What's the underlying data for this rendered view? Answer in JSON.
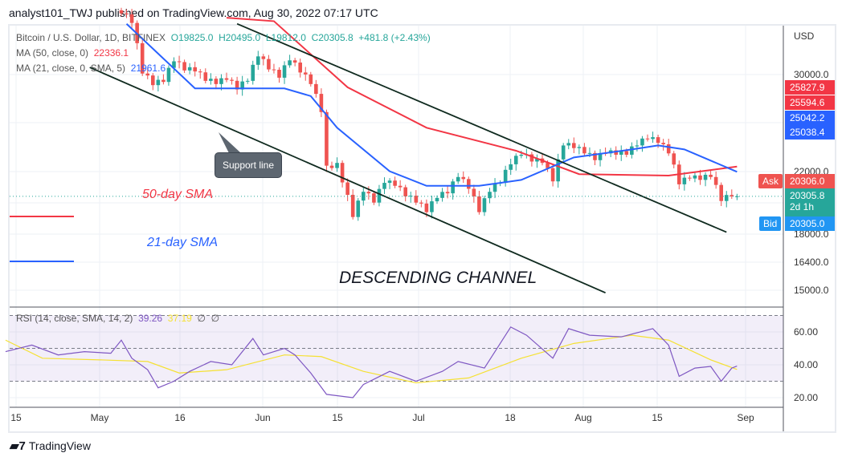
{
  "header": {
    "publisher": "analyst101_TWJ published on TradingView.com, Aug 30, 2022 07:17 UTC"
  },
  "legend": {
    "symbol": "Bitcoin / U.S. Dollar, 1D, BITFINEX",
    "o": "O19825.0",
    "h": "H20495.0",
    "l": "L19812.0",
    "c": "C20305.8",
    "change": "+481.8 (+2.43%)",
    "ma50_label": "MA (50, close, 0)",
    "ma50_value": "22336.1",
    "ma21_label": "MA (21, close, 0, SMA, 5)",
    "ma21_value": "21961.6",
    "rsi_label": "RSI (14, close, SMA, 14, 2)",
    "rsi_value": "39.26",
    "rsi_sma_value": "37.19",
    "rsi_extra1": "∅",
    "rsi_extra2": "∅"
  },
  "colors": {
    "up": "#26a69a",
    "down": "#ef5350",
    "ma50": "#f23645",
    "ma21": "#2962ff",
    "rsi": "#7e57c2",
    "rsi_sma": "#f5e132",
    "channel": "#0f2a1f"
  },
  "price_axis": {
    "currency": "USD",
    "ticks": [
      "30000.0",
      "22000.0",
      "18000.0",
      "16400.0",
      "15000.0"
    ],
    "labels": {
      "ma50_a": "25827.9",
      "ma50_b": "25594.6",
      "ma21_a": "25042.2",
      "ma21_b": "25038.4",
      "ask_tag": "Ask",
      "ask": "20306.0",
      "last": "20305.8",
      "countdown": "2d 1h",
      "bid_tag": "Bid",
      "bid": "20305.0"
    }
  },
  "rsi_axis": {
    "ticks": [
      "60.00",
      "40.00",
      "20.00"
    ]
  },
  "time_axis": [
    "15",
    "May",
    "16",
    "Jun",
    "15",
    "Jul",
    "18",
    "Aug",
    "15",
    "Sep"
  ],
  "annotations": {
    "support": "Support line",
    "sma50": "50-day SMA",
    "sma21": "21-day SMA",
    "channel": "DESCENDING CHANNEL"
  },
  "brand": "TradingView",
  "chart_data": {
    "type": "candlestick",
    "scale": "log",
    "closes": [
      [
        "05-05",
        36500
      ],
      [
        "05-07",
        35400
      ],
      [
        "05-09",
        30100
      ],
      [
        "05-11",
        29000
      ],
      [
        "05-13",
        29300
      ],
      [
        "05-15",
        31300
      ],
      [
        "05-17",
        30400
      ],
      [
        "05-19",
        30300
      ],
      [
        "05-21",
        29400
      ],
      [
        "05-23",
        29100
      ],
      [
        "05-25",
        29500
      ],
      [
        "05-27",
        28600
      ],
      [
        "05-29",
        29400
      ],
      [
        "05-31",
        31800
      ],
      [
        "06-02",
        30500
      ],
      [
        "06-04",
        29700
      ],
      [
        "06-06",
        31400
      ],
      [
        "06-08",
        30200
      ],
      [
        "06-10",
        29100
      ],
      [
        "06-12",
        26600
      ],
      [
        "06-13",
        22400
      ],
      [
        "06-15",
        22600
      ],
      [
        "06-17",
        20400
      ],
      [
        "06-18",
        19000
      ],
      [
        "06-20",
        20600
      ],
      [
        "06-22",
        19900
      ],
      [
        "06-24",
        21200
      ],
      [
        "06-26",
        21000
      ],
      [
        "06-28",
        20300
      ],
      [
        "06-30",
        19900
      ],
      [
        "07-02",
        19300
      ],
      [
        "07-04",
        20200
      ],
      [
        "07-06",
        20500
      ],
      [
        "07-08",
        21600
      ],
      [
        "07-10",
        20800
      ],
      [
        "07-12",
        19300
      ],
      [
        "07-14",
        20600
      ],
      [
        "07-16",
        21200
      ],
      [
        "07-18",
        22500
      ],
      [
        "07-20",
        23200
      ],
      [
        "07-22",
        22700
      ],
      [
        "07-24",
        22600
      ],
      [
        "07-26",
        21300
      ],
      [
        "07-28",
        23900
      ],
      [
        "07-30",
        23700
      ],
      [
        "08-01",
        23300
      ],
      [
        "08-03",
        22800
      ],
      [
        "08-05",
        23300
      ],
      [
        "08-07",
        23200
      ],
      [
        "08-09",
        23200
      ],
      [
        "08-11",
        23900
      ],
      [
        "08-13",
        24400
      ],
      [
        "08-15",
        24100
      ],
      [
        "08-17",
        23300
      ],
      [
        "08-19",
        21100
      ],
      [
        "08-21",
        21500
      ],
      [
        "08-23",
        21400
      ],
      [
        "08-25",
        21600
      ],
      [
        "08-27",
        20000
      ],
      [
        "08-29",
        20300
      ],
      [
        "08-30",
        20305.8
      ]
    ],
    "ma50": [
      [
        "05-25",
        36000
      ],
      [
        "06-03",
        35600
      ],
      [
        "06-17",
        28800
      ],
      [
        "07-02",
        25300
      ],
      [
        "07-19",
        23500
      ],
      [
        "07-31",
        21800
      ],
      [
        "08-17",
        21700
      ],
      [
        "08-30",
        22336.1
      ]
    ],
    "ma21": [
      [
        "05-06",
        35300
      ],
      [
        "05-19",
        28700
      ],
      [
        "06-05",
        28700
      ],
      [
        "06-10",
        28000
      ],
      [
        "06-15",
        25300
      ],
      [
        "06-25",
        22000
      ],
      [
        "07-02",
        21000
      ],
      [
        "07-12",
        21000
      ],
      [
        "07-20",
        21400
      ],
      [
        "07-30",
        23000
      ],
      [
        "08-10",
        23600
      ],
      [
        "08-15",
        23900
      ],
      [
        "08-20",
        23600
      ],
      [
        "08-30",
        21961.6
      ]
    ],
    "last_price": 20305.8,
    "channel_lines": [
      [
        [
          "05-27",
          35300
        ],
        [
          "08-28",
          18100
        ]
      ],
      [
        [
          "04-29",
          30700
        ],
        [
          "08-05",
          14900
        ]
      ]
    ],
    "rsi": [
      [
        "04-13",
        48
      ],
      [
        "04-18",
        52
      ],
      [
        "04-23",
        46
      ],
      [
        "04-28",
        48
      ],
      [
        "05-03",
        47
      ],
      [
        "05-05",
        55
      ],
      [
        "05-07",
        44
      ],
      [
        "05-10",
        37
      ],
      [
        "05-12",
        26
      ],
      [
        "05-15",
        30
      ],
      [
        "05-18",
        36
      ],
      [
        "05-22",
        42
      ],
      [
        "05-26",
        40
      ],
      [
        "05-30",
        56
      ],
      [
        "06-01",
        46
      ],
      [
        "06-05",
        50
      ],
      [
        "06-07",
        46
      ],
      [
        "06-10",
        35
      ],
      [
        "06-13",
        22
      ],
      [
        "06-18",
        20
      ],
      [
        "06-20",
        28
      ],
      [
        "06-25",
        36
      ],
      [
        "06-30",
        30
      ],
      [
        "07-05",
        36
      ],
      [
        "07-08",
        42
      ],
      [
        "07-13",
        38
      ],
      [
        "07-18",
        63
      ],
      [
        "07-21",
        58
      ],
      [
        "07-26",
        44
      ],
      [
        "07-29",
        62
      ],
      [
        "08-02",
        58
      ],
      [
        "08-08",
        57
      ],
      [
        "08-14",
        62
      ],
      [
        "08-17",
        52
      ],
      [
        "08-19",
        33
      ],
      [
        "08-22",
        38
      ],
      [
        "08-25",
        39
      ],
      [
        "08-27",
        30
      ],
      [
        "08-29",
        38
      ],
      [
        "08-30",
        39.26
      ]
    ],
    "rsi_sma": [
      [
        "04-13",
        55
      ],
      [
        "04-20",
        44
      ],
      [
        "05-01",
        43
      ],
      [
        "05-10",
        42
      ],
      [
        "05-16",
        35
      ],
      [
        "05-25",
        37
      ],
      [
        "06-05",
        46
      ],
      [
        "06-12",
        45
      ],
      [
        "06-20",
        36
      ],
      [
        "06-30",
        29
      ],
      [
        "07-10",
        32
      ],
      [
        "07-20",
        44
      ],
      [
        "07-30",
        53
      ],
      [
        "08-10",
        58
      ],
      [
        "08-17",
        55
      ],
      [
        "08-25",
        43
      ],
      [
        "08-30",
        37.19
      ]
    ],
    "rsi_bands": [
      70,
      50,
      30
    ]
  }
}
